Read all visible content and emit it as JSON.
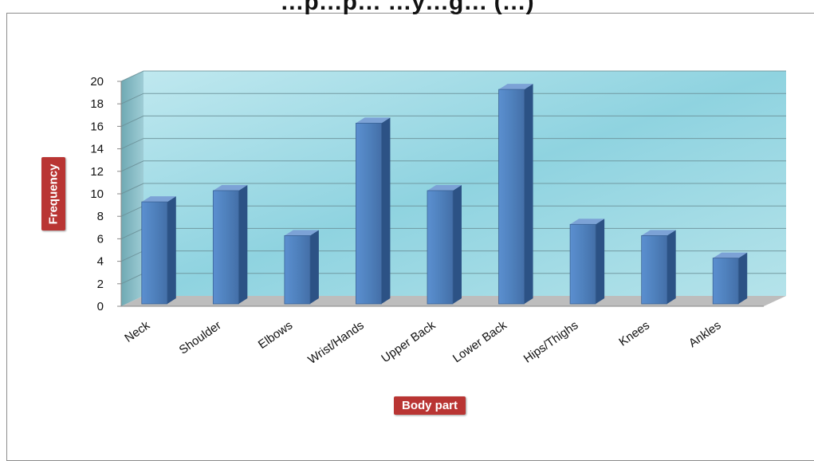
{
  "chart_data": {
    "type": "bar",
    "title": "…p…p… …y…g… (…)",
    "xlabel": "Body part",
    "ylabel": "Frequency",
    "categories": [
      "Neck",
      "Shoulder",
      "Elbows",
      "Wrist/Hands",
      "Upper Back",
      "Lower Back",
      "Hips/Thighs",
      "Knees",
      "Ankles"
    ],
    "values": [
      9,
      10,
      6,
      16,
      10,
      19,
      7,
      6,
      4
    ],
    "ylim": [
      0,
      20
    ],
    "yticks": [
      "0",
      "2",
      "4",
      "6",
      "8",
      "10",
      "12",
      "14",
      "16",
      "18",
      "20"
    ],
    "grid": true,
    "legend": "none",
    "style": "3d-column",
    "colors": {
      "bar_front": "#4f81bd",
      "bar_side": "#2c5285",
      "bar_top": "#7ca2d6",
      "wall": "#a8dce6",
      "floor": "#b9b9b9",
      "badge": "#b93533"
    }
  }
}
